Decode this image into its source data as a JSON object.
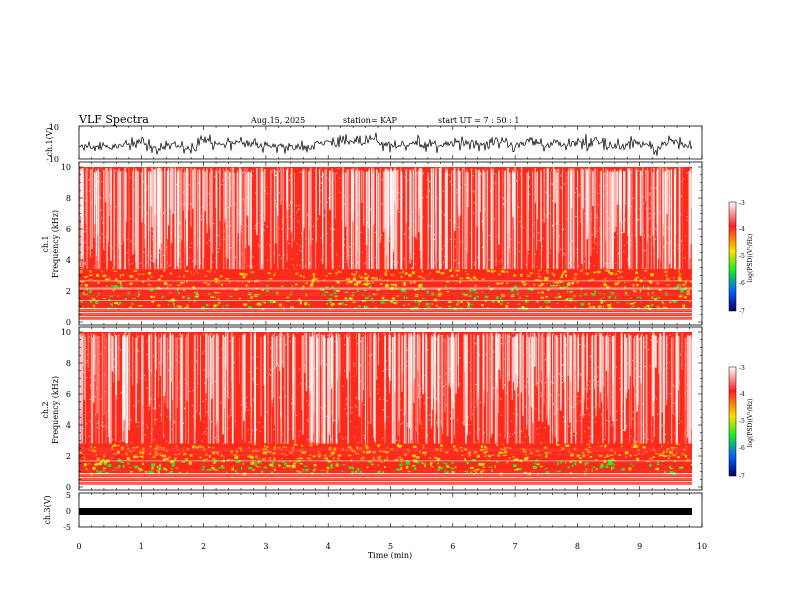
{
  "header": {
    "title": "VLF Spectra",
    "date": "Aug.15, 2025",
    "station": "station= KAP",
    "start": "start  UT =   7 : 50 : 1"
  },
  "chart_data": [
    {
      "type": "line",
      "name": "ch1-waveform",
      "ylabel": "ch.1(V)",
      "ylim": [
        -10,
        10
      ],
      "ytick_labels": [
        "10",
        "-10"
      ],
      "xlim": [
        0,
        10
      ]
    },
    {
      "type": "heatmap",
      "name": "ch1-spectrogram",
      "ylabel_line1": "ch.1",
      "ylabel_line2": "Frequency  (kHz)",
      "ylim": [
        0,
        10
      ],
      "ytick_labels": [
        "0",
        "2",
        "4",
        "6",
        "8",
        "10"
      ],
      "xlim": [
        0,
        10
      ],
      "colorbar": {
        "label": "log(PSD)(V²/Hz)",
        "range": [
          -7,
          -3
        ],
        "tick_labels": [
          "-3",
          "-4",
          "-5",
          "-6",
          "-7"
        ]
      }
    },
    {
      "type": "heatmap",
      "name": "ch2-spectrogram",
      "ylabel_line1": "ch.2",
      "ylabel_line2": "Frequency  (kHz)",
      "ylim": [
        0,
        10
      ],
      "ytick_labels": [
        "0",
        "2",
        "4",
        "6",
        "8",
        "10"
      ],
      "xlim": [
        0,
        10
      ],
      "colorbar": {
        "label": "log(PSD)(V²/Hz)",
        "range": [
          -7,
          -3
        ],
        "tick_labels": [
          "-3",
          "-4",
          "-5",
          "-6",
          "-7"
        ]
      }
    },
    {
      "type": "line",
      "name": "ch3-waveform",
      "ylabel": "ch.3(V)",
      "ylim": [
        -5,
        5
      ],
      "ytick_labels": [
        "5",
        "0",
        "-5"
      ],
      "xlim": [
        0,
        10
      ],
      "xlabel": "Time  (min)",
      "xtick_labels": [
        "0",
        "1",
        "2",
        "3",
        "4",
        "5",
        "6",
        "7",
        "8",
        "9",
        "10"
      ]
    }
  ],
  "colors": {
    "axis": "#000000",
    "trace": "#000000",
    "bg_red": "#ff2a1a",
    "mid_yellow": "#ffd400",
    "mid_green": "#22ee22",
    "low_band": "#ff6a5a"
  }
}
